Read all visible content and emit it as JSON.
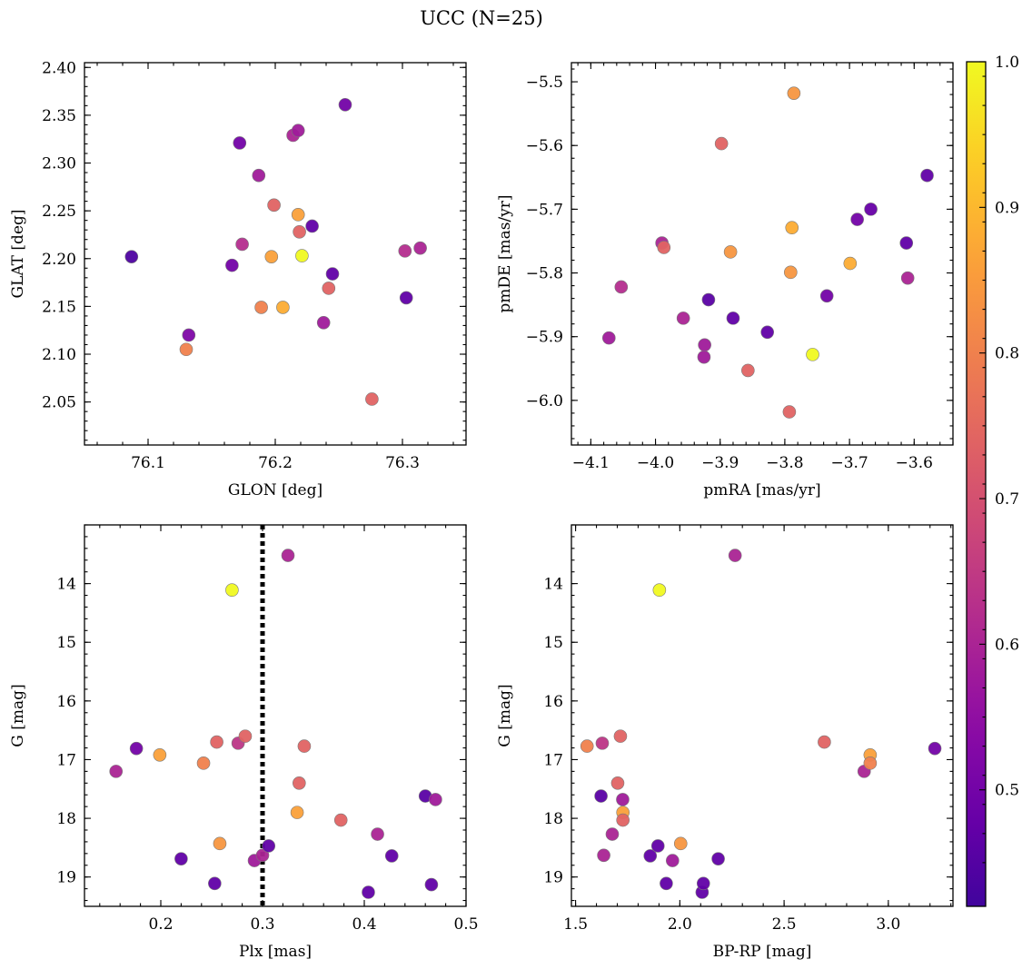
{
  "figure": {
    "title": "UCC (N=25)"
  },
  "colorbar": {
    "min": 0.42,
    "max": 1.0,
    "ticks": [
      0.5,
      0.6,
      0.7,
      0.8,
      0.9,
      1.0
    ],
    "tick_labels": [
      "0.5",
      "0.6",
      "0.7",
      "0.8",
      "0.9",
      "1.0"
    ],
    "colormap": "plasma"
  },
  "chart_data": [
    {
      "type": "scatter",
      "id": "glon-glat",
      "xlabel": "GLON [deg]",
      "ylabel": "GLAT [deg]",
      "xlim": [
        76.05,
        76.35
      ],
      "ylim": [
        2.005,
        2.405
      ],
      "y_inverted": false,
      "xticks": [
        76.1,
        76.2,
        76.3
      ],
      "xtick_labels": [
        "76.1",
        "76.2",
        "76.3"
      ],
      "yticks": [
        2.05,
        2.1,
        2.15,
        2.2,
        2.25,
        2.3,
        2.35,
        2.4
      ],
      "ytick_labels": [
        "2.05",
        "2.10",
        "2.15",
        "2.20",
        "2.25",
        "2.30",
        "2.35",
        "2.40"
      ],
      "points": [
        {
          "x": 76.087,
          "y": 2.202,
          "c": 0.44
        },
        {
          "x": 76.132,
          "y": 2.12,
          "c": 0.52
        },
        {
          "x": 76.13,
          "y": 2.105,
          "c": 0.8
        },
        {
          "x": 76.166,
          "y": 2.193,
          "c": 0.5
        },
        {
          "x": 76.172,
          "y": 2.321,
          "c": 0.5
        },
        {
          "x": 76.174,
          "y": 2.215,
          "c": 0.62
        },
        {
          "x": 76.187,
          "y": 2.287,
          "c": 0.58
        },
        {
          "x": 76.189,
          "y": 2.149,
          "c": 0.8
        },
        {
          "x": 76.197,
          "y": 2.202,
          "c": 0.86
        },
        {
          "x": 76.199,
          "y": 2.256,
          "c": 0.74
        },
        {
          "x": 76.206,
          "y": 2.149,
          "c": 0.88
        },
        {
          "x": 76.214,
          "y": 2.329,
          "c": 0.6
        },
        {
          "x": 76.218,
          "y": 2.334,
          "c": 0.58
        },
        {
          "x": 76.218,
          "y": 2.246,
          "c": 0.86
        },
        {
          "x": 76.219,
          "y": 2.228,
          "c": 0.74
        },
        {
          "x": 76.221,
          "y": 2.203,
          "c": 1.0
        },
        {
          "x": 76.229,
          "y": 2.234,
          "c": 0.47
        },
        {
          "x": 76.238,
          "y": 2.133,
          "c": 0.58
        },
        {
          "x": 76.242,
          "y": 2.169,
          "c": 0.74
        },
        {
          "x": 76.245,
          "y": 2.184,
          "c": 0.47
        },
        {
          "x": 76.255,
          "y": 2.361,
          "c": 0.5
        },
        {
          "x": 76.276,
          "y": 2.053,
          "c": 0.74
        },
        {
          "x": 76.302,
          "y": 2.208,
          "c": 0.62
        },
        {
          "x": 76.303,
          "y": 2.159,
          "c": 0.47
        },
        {
          "x": 76.314,
          "y": 2.211,
          "c": 0.6
        }
      ]
    },
    {
      "type": "scatter",
      "id": "pm",
      "xlabel": "pmRA [mas/yr]",
      "ylabel": "pmDE [mas/yr]",
      "xlim": [
        -4.13,
        -3.54
      ],
      "ylim": [
        -6.07,
        -5.47
      ],
      "y_inverted": false,
      "xticks": [
        -4.1,
        -4.0,
        -3.9,
        -3.8,
        -3.7,
        -3.6
      ],
      "xtick_labels": [
        "−4.1",
        "−4.0",
        "−3.9",
        "−3.8",
        "−3.7",
        "−3.6"
      ],
      "yticks": [
        -6.0,
        -5.9,
        -5.8,
        -5.7,
        -5.6,
        -5.5
      ],
      "ytick_labels": [
        "−6.0",
        "−5.9",
        "−5.8",
        "−5.7",
        "−5.6",
        "−5.5"
      ],
      "points": [
        {
          "x": -4.072,
          "y": -5.902,
          "c": 0.58
        },
        {
          "x": -4.053,
          "y": -5.822,
          "c": 0.62
        },
        {
          "x": -3.99,
          "y": -5.753,
          "c": 0.6
        },
        {
          "x": -3.987,
          "y": -5.76,
          "c": 0.74
        },
        {
          "x": -3.957,
          "y": -5.871,
          "c": 0.6
        },
        {
          "x": -3.924,
          "y": -5.913,
          "c": 0.58
        },
        {
          "x": -3.925,
          "y": -5.932,
          "c": 0.58
        },
        {
          "x": -3.918,
          "y": -5.842,
          "c": 0.46
        },
        {
          "x": -3.898,
          "y": -5.597,
          "c": 0.74
        },
        {
          "x": -3.884,
          "y": -5.767,
          "c": 0.84
        },
        {
          "x": -3.88,
          "y": -5.871,
          "c": 0.47
        },
        {
          "x": -3.857,
          "y": -5.953,
          "c": 0.74
        },
        {
          "x": -3.827,
          "y": -5.893,
          "c": 0.47
        },
        {
          "x": -3.793,
          "y": -6.018,
          "c": 0.74
        },
        {
          "x": -3.791,
          "y": -5.799,
          "c": 0.84
        },
        {
          "x": -3.789,
          "y": -5.729,
          "c": 0.88
        },
        {
          "x": -3.786,
          "y": -5.518,
          "c": 0.84
        },
        {
          "x": -3.757,
          "y": -5.928,
          "c": 1.0
        },
        {
          "x": -3.735,
          "y": -5.836,
          "c": 0.5
        },
        {
          "x": -3.699,
          "y": -5.785,
          "c": 0.88
        },
        {
          "x": -3.688,
          "y": -5.716,
          "c": 0.5
        },
        {
          "x": -3.667,
          "y": -5.7,
          "c": 0.48
        },
        {
          "x": -3.612,
          "y": -5.753,
          "c": 0.47
        },
        {
          "x": -3.61,
          "y": -5.808,
          "c": 0.6
        },
        {
          "x": -3.58,
          "y": -5.647,
          "c": 0.47
        }
      ]
    },
    {
      "type": "scatter",
      "id": "plx-g",
      "xlabel": "Plx [mas]",
      "ylabel": "G [mag]",
      "xlim": [
        0.125,
        0.5
      ],
      "ylim": [
        19.5,
        13.0
      ],
      "y_inverted": true,
      "xticks": [
        0.2,
        0.3,
        0.4,
        0.5
      ],
      "xtick_labels": [
        "0.2",
        "0.3",
        "0.4",
        "0.5"
      ],
      "yticks": [
        14,
        15,
        16,
        17,
        18,
        19
      ],
      "ytick_labels": [
        "14",
        "15",
        "16",
        "17",
        "18",
        "19"
      ],
      "vline": {
        "x": 0.3,
        "style": "dotted",
        "color": "#000000"
      },
      "points": [
        {
          "x": 0.156,
          "y": 17.2,
          "c": 0.6
        },
        {
          "x": 0.176,
          "y": 16.81,
          "c": 0.5
        },
        {
          "x": 0.199,
          "y": 16.92,
          "c": 0.86
        },
        {
          "x": 0.22,
          "y": 18.69,
          "c": 0.47
        },
        {
          "x": 0.242,
          "y": 17.06,
          "c": 0.8
        },
        {
          "x": 0.253,
          "y": 19.11,
          "c": 0.47
        },
        {
          "x": 0.255,
          "y": 16.7,
          "c": 0.74
        },
        {
          "x": 0.258,
          "y": 18.43,
          "c": 0.84
        },
        {
          "x": 0.27,
          "y": 14.11,
          "c": 1.0
        },
        {
          "x": 0.276,
          "y": 16.72,
          "c": 0.64
        },
        {
          "x": 0.283,
          "y": 16.6,
          "c": 0.74
        },
        {
          "x": 0.292,
          "y": 18.72,
          "c": 0.58
        },
        {
          "x": 0.3,
          "y": 18.63,
          "c": 0.6
        },
        {
          "x": 0.306,
          "y": 18.47,
          "c": 0.47
        },
        {
          "x": 0.325,
          "y": 13.52,
          "c": 0.6
        },
        {
          "x": 0.334,
          "y": 17.9,
          "c": 0.86
        },
        {
          "x": 0.336,
          "y": 17.4,
          "c": 0.74
        },
        {
          "x": 0.341,
          "y": 16.77,
          "c": 0.74
        },
        {
          "x": 0.377,
          "y": 18.03,
          "c": 0.74
        },
        {
          "x": 0.404,
          "y": 19.26,
          "c": 0.47
        },
        {
          "x": 0.413,
          "y": 18.27,
          "c": 0.6
        },
        {
          "x": 0.427,
          "y": 18.64,
          "c": 0.47
        },
        {
          "x": 0.46,
          "y": 17.62,
          "c": 0.46
        },
        {
          "x": 0.466,
          "y": 19.13,
          "c": 0.47
        },
        {
          "x": 0.47,
          "y": 17.68,
          "c": 0.58
        }
      ]
    },
    {
      "type": "scatter",
      "id": "bprp-g",
      "xlabel": "BP-RP [mag]",
      "ylabel": "G [mag]",
      "xlim": [
        1.48,
        3.31
      ],
      "ylim": [
        19.5,
        13.0
      ],
      "y_inverted": true,
      "xticks": [
        1.5,
        2.0,
        2.5,
        3.0
      ],
      "xtick_labels": [
        "1.5",
        "2.0",
        "2.5",
        "3.0"
      ],
      "yticks": [
        14,
        15,
        16,
        17,
        18,
        19
      ],
      "ytick_labels": [
        "14",
        "15",
        "16",
        "17",
        "18",
        "19"
      ],
      "points": [
        {
          "x": 1.555,
          "y": 16.77,
          "c": 0.8
        },
        {
          "x": 1.622,
          "y": 17.62,
          "c": 0.46
        },
        {
          "x": 1.628,
          "y": 16.72,
          "c": 0.64
        },
        {
          "x": 1.635,
          "y": 18.63,
          "c": 0.6
        },
        {
          "x": 1.676,
          "y": 18.27,
          "c": 0.6
        },
        {
          "x": 1.702,
          "y": 17.4,
          "c": 0.74
        },
        {
          "x": 1.715,
          "y": 16.6,
          "c": 0.74
        },
        {
          "x": 1.726,
          "y": 17.68,
          "c": 0.58
        },
        {
          "x": 1.727,
          "y": 17.9,
          "c": 0.86
        },
        {
          "x": 1.727,
          "y": 18.03,
          "c": 0.74
        },
        {
          "x": 1.858,
          "y": 18.64,
          "c": 0.47
        },
        {
          "x": 1.895,
          "y": 18.47,
          "c": 0.47
        },
        {
          "x": 1.902,
          "y": 14.11,
          "c": 1.0
        },
        {
          "x": 1.935,
          "y": 19.11,
          "c": 0.47
        },
        {
          "x": 1.965,
          "y": 18.72,
          "c": 0.58
        },
        {
          "x": 2.004,
          "y": 18.43,
          "c": 0.84
        },
        {
          "x": 2.107,
          "y": 19.26,
          "c": 0.47
        },
        {
          "x": 2.113,
          "y": 19.11,
          "c": 0.47
        },
        {
          "x": 2.184,
          "y": 18.69,
          "c": 0.47
        },
        {
          "x": 2.265,
          "y": 13.52,
          "c": 0.6
        },
        {
          "x": 2.693,
          "y": 16.7,
          "c": 0.74
        },
        {
          "x": 2.884,
          "y": 17.2,
          "c": 0.6
        },
        {
          "x": 2.913,
          "y": 16.92,
          "c": 0.86
        },
        {
          "x": 2.913,
          "y": 17.06,
          "c": 0.8
        },
        {
          "x": 3.223,
          "y": 16.81,
          "c": 0.5
        }
      ]
    }
  ]
}
